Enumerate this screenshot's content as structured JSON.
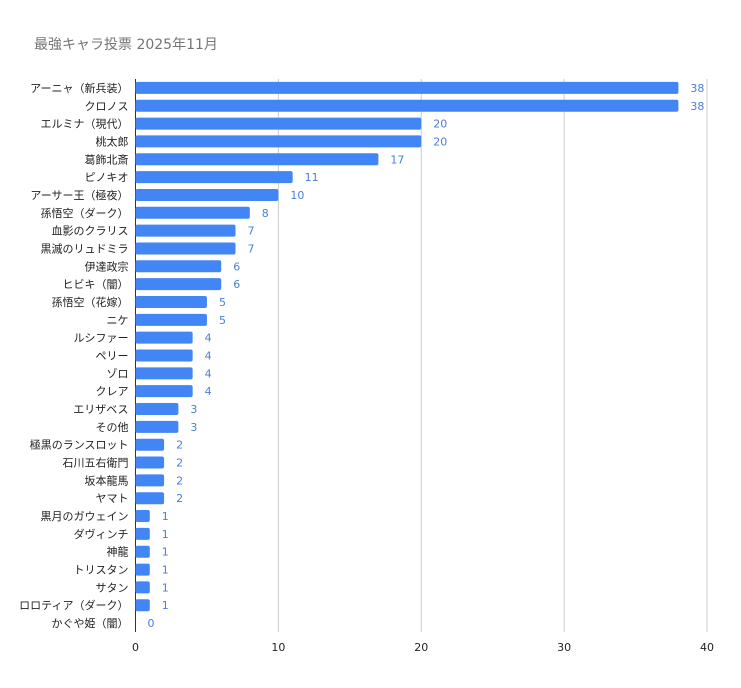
{
  "chart_data": {
    "type": "bar",
    "orientation": "horizontal",
    "title": "最強キャラ投票 2025年11月",
    "xlabel": "",
    "ylabel": "",
    "xlim": [
      0,
      40
    ],
    "x_ticks": [
      "0",
      "10",
      "20",
      "30",
      "40"
    ],
    "grid": true,
    "legend": "none",
    "bar_color": "#4285f4",
    "label_color": "#4a7fd4",
    "gridline_color": "#cccccc",
    "categories": [
      "アーニャ（新兵装）",
      "クロノス",
      "エルミナ（現代）",
      "桃太郎",
      "葛飾北斎",
      "ピノキオ",
      "アーサー王（極夜）",
      "孫悟空（ダーク）",
      "血影のクラリス",
      "黒滅のリュドミラ",
      "伊達政宗",
      "ヒビキ（闇）",
      "孫悟空（花嫁）",
      "ニケ",
      "ルシファー",
      "ペリー",
      "ゾロ",
      "クレア",
      "エリザベス",
      "その他",
      "極黒のランスロット",
      "石川五右衛門",
      "坂本龍馬",
      "ヤマト",
      "黒月のガウェイン",
      "ダヴィンチ",
      "神龍",
      "トリスタン",
      "サタン",
      "ロロティア（ダーク）",
      "かぐや姫（闇）"
    ],
    "values": [
      38,
      38,
      20,
      20,
      17,
      11,
      10,
      8,
      7,
      7,
      6,
      6,
      5,
      5,
      4,
      4,
      4,
      4,
      3,
      3,
      2,
      2,
      2,
      2,
      1,
      1,
      1,
      1,
      1,
      1,
      0
    ]
  }
}
